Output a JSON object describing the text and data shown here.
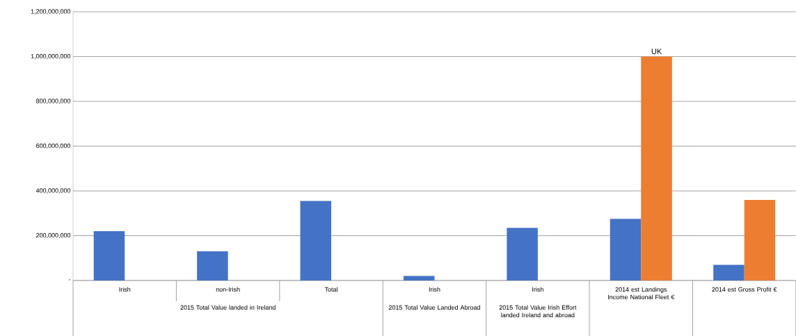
{
  "chart_data": {
    "type": "bar",
    "categories": [
      "Irish",
      "non-Irish",
      "Total",
      "Irish",
      "Irish",
      "2014 est Landings Income National Fleet €",
      "2014 est Gross Profit €"
    ],
    "series": [
      {
        "color": "#4472c4",
        "values": [
          220000000,
          130000000,
          355000000,
          20000000,
          235000000,
          275000000,
          70000000
        ]
      },
      {
        "color": "#ed7d31",
        "values": [
          null,
          null,
          null,
          null,
          null,
          1000000000,
          360000000
        ]
      }
    ],
    "ylim": [
      0,
      1200000000
    ],
    "yticks": [
      {
        "value": 0,
        "label": "-"
      },
      {
        "value": 200000000,
        "label": "200,000,000"
      },
      {
        "value": 400000000,
        "label": "400,000,000"
      },
      {
        "value": 600000000,
        "label": "600,000,000"
      },
      {
        "value": 800000000,
        "label": "800,000,000"
      },
      {
        "value": 1000000000,
        "label": "1,000,000,000"
      },
      {
        "value": 1200000000,
        "label": "1,200,000,000"
      }
    ],
    "grid": "y",
    "annotations": [
      {
        "text": "UK",
        "x": "2014 est Landings Income National Fleet €",
        "y": 1000000000
      },
      "2015 Total Value landed in Ireland",
      "2015 Total Value Landed Abroad",
      "2015 Total Value Irish Effort landed Ireland and abroad"
    ]
  }
}
